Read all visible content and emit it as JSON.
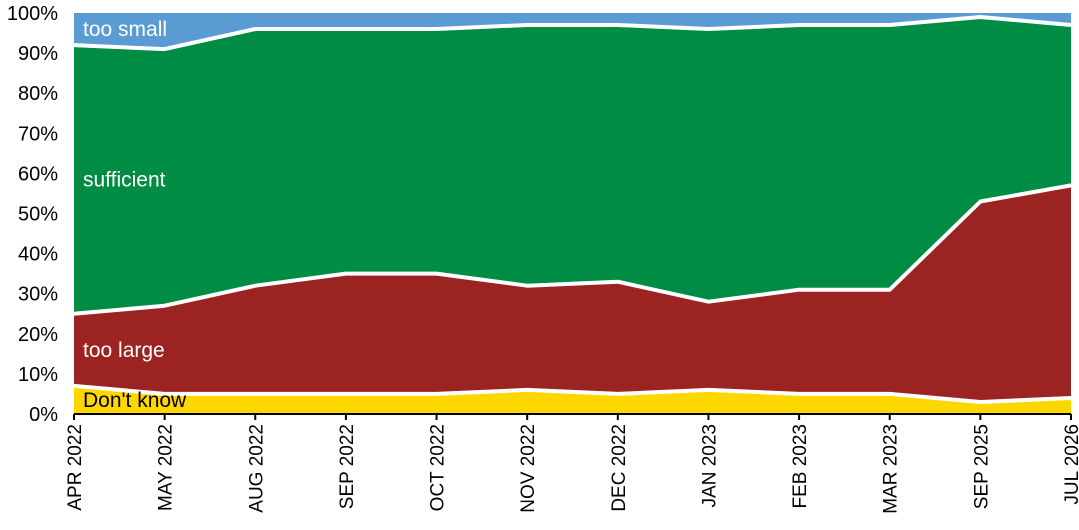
{
  "chart_data": {
    "type": "area",
    "stacked": true,
    "percent": true,
    "categories": [
      "APR 2022",
      "MAY 2022",
      "AUG 2022",
      "SEP 2022",
      "OCT 2022",
      "NOV 2022",
      "DEC 2022",
      "JAN 2023",
      "FEB 2023",
      "MAR 2023",
      "SEP 2025",
      "JUL 2026"
    ],
    "series": [
      {
        "name": "Don't know",
        "color": "#FFD700",
        "label_color": "#000000",
        "values": [
          7,
          5,
          5,
          5,
          5,
          6,
          5,
          6,
          5,
          5,
          3,
          4
        ]
      },
      {
        "name": "too large",
        "color": "#9B2321",
        "label_color": "#ffffff",
        "values": [
          18,
          22,
          27,
          30,
          30,
          26,
          28,
          22,
          26,
          26,
          50,
          53
        ]
      },
      {
        "name": "sufficient",
        "color": "#008C45",
        "label_color": "#ffffff",
        "values": [
          67,
          64,
          64,
          61,
          61,
          65,
          64,
          68,
          66,
          66,
          46,
          40
        ]
      },
      {
        "name": "too small",
        "color": "#5A9BD4",
        "label_color": "#ffffff",
        "values": [
          8,
          9,
          4,
          4,
          4,
          3,
          3,
          4,
          3,
          3,
          1,
          3
        ]
      }
    ],
    "y_ticks": [
      "0%",
      "10%",
      "20%",
      "30%",
      "40%",
      "50%",
      "60%",
      "70%",
      "80%",
      "90%",
      "100%"
    ],
    "ylim": [
      0,
      100
    ],
    "title": "",
    "xlabel": "",
    "ylabel": "",
    "grid": false,
    "legend": "inline labels"
  }
}
